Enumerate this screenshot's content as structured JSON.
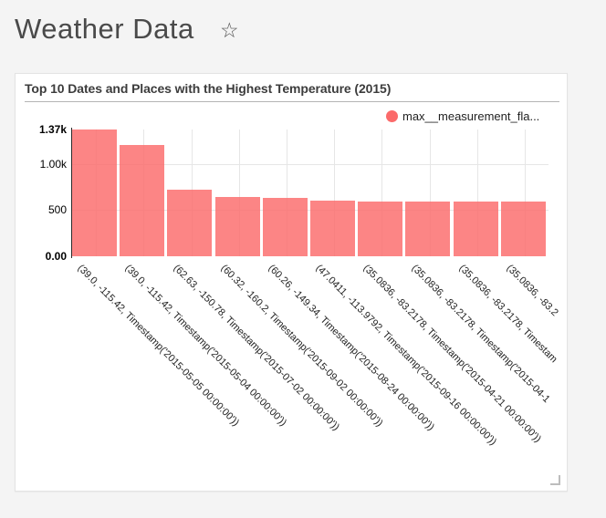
{
  "header": {
    "title": "Weather Data"
  },
  "icons": {
    "favorite_star": "☆"
  },
  "card": {
    "title": "Top 10 Dates and Places with the Highest Temperature (2015)",
    "legend": {
      "label": "max__measurement_fla...",
      "color": "#fb6a6a"
    }
  },
  "chart_data": {
    "type": "bar",
    "title": "Top 10 Dates and Places with the Highest Temperature (2015)",
    "series": [
      {
        "name": "max__measurement_fla...",
        "values": [
          1370,
          1200,
          723,
          645,
          635,
          598,
          596,
          595,
          594,
          588
        ]
      }
    ],
    "categories": [
      "(39.0, -115.42, Timestamp('2015-05-05 00:00:00'))",
      "(39.0, -115.42, Timestamp('2015-05-04 00:00:00'))",
      "(62.63, -150.78, Timestamp('2015-07-02 00:00:00'))",
      "(60.32, -160.2, Timestamp('2015-09-02 00:00:00'))",
      "(60.26, -149.34, Timestamp('2015-08-24 00:00:00'))",
      "(47.0411, -113.9792, Timestamp('2015-09-16 00:00:00'))",
      "(35.0836, -83.2178, Timestamp('2015-04-21 00:00:00'))",
      "(35.0836, -83.2178, Timestamp('2015-04-1",
      "(35.0836, -83.2178, Timestam",
      "(35.0836, -83.2"
    ],
    "xlabel": "",
    "ylabel": "",
    "ylim": [
      0,
      1370
    ],
    "yticks": [
      {
        "label": "1.37k",
        "value": 1370,
        "bold": true
      },
      {
        "label": "1.00k",
        "value": 1000,
        "bold": false
      },
      {
        "label": "500",
        "value": 500,
        "bold": false
      },
      {
        "label": "0.00",
        "value": 0,
        "bold": true
      }
    ],
    "bar_color": "#fb6a6a",
    "bar_opacity": 0.82,
    "grid": true,
    "legend_position": "top-right",
    "x_label_rotation_deg": 45
  }
}
